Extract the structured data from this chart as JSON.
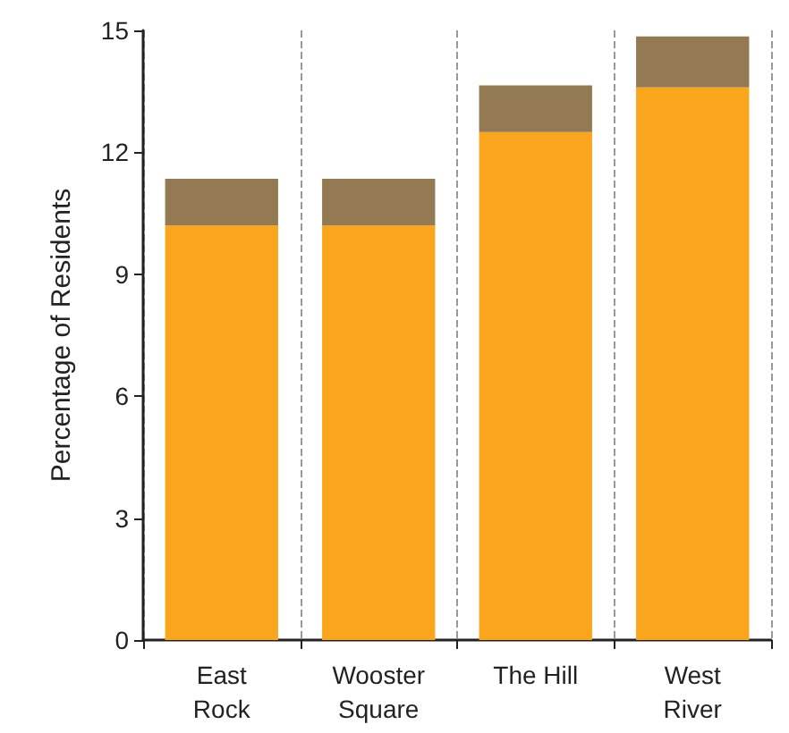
{
  "chart_data": {
    "type": "bar",
    "ylabel": "Percentage of Residents",
    "categories": [
      "East\nRock",
      "Wooster\nSquare",
      "The Hill",
      "West\nRiver"
    ],
    "stacked": true,
    "series": [
      {
        "color": "#f9a61c",
        "values": [
          10.2,
          10.2,
          12.5,
          13.6
        ]
      },
      {
        "color": "#937a52",
        "values": [
          1.15,
          1.15,
          1.15,
          1.25
        ]
      }
    ],
    "ylim": [
      0,
      15
    ],
    "yticks": [
      0,
      3,
      6,
      9,
      12,
      15
    ],
    "grid": "x"
  }
}
